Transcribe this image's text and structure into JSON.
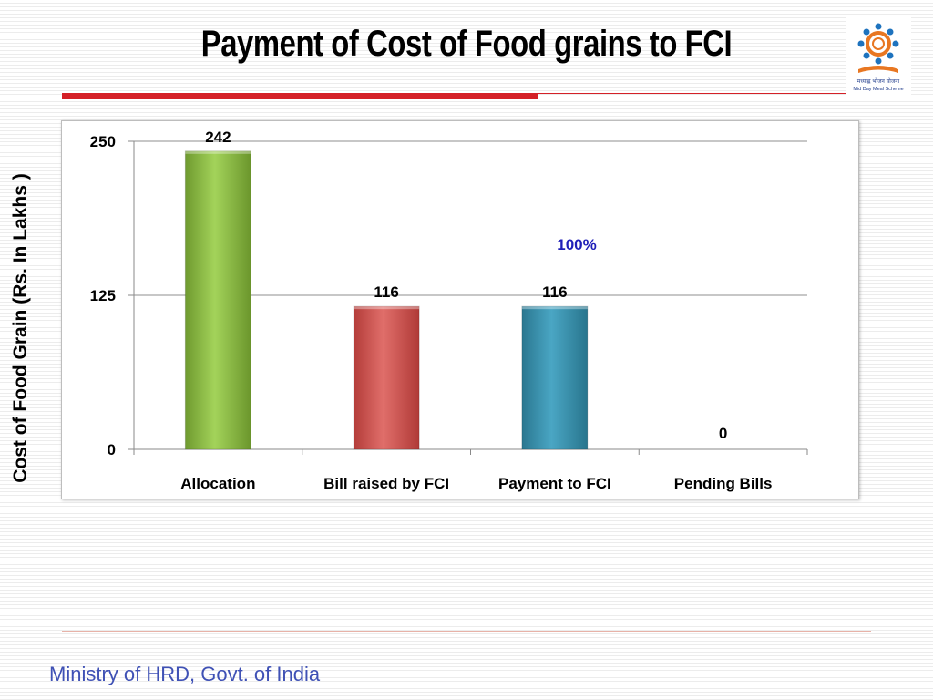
{
  "slide": {
    "title": "Payment of Cost of Food grains to FCI",
    "footer": "Ministry of HRD, Govt. of India",
    "logo_caption": "मध्याह्न भोजन योजना",
    "logo_subcaption": "Mid Day Meal Scheme"
  },
  "chart_data": {
    "type": "bar",
    "title": "Payment of Cost of Food grains to FCI",
    "xlabel": "",
    "ylabel": "Cost of Food Grain (Rs. In Lakhs )",
    "categories": [
      "Allocation",
      "Bill raised by FCI",
      "Payment to FCI",
      "Pending Bills"
    ],
    "values": [
      242,
      116,
      116,
      0
    ],
    "data_labels": [
      "242",
      "116",
      "116",
      "0"
    ],
    "bar_colors": [
      "#8cc63f",
      "#d9534f",
      "#3a93b0",
      "#8064a2"
    ],
    "ylim": [
      0,
      250
    ],
    "yticks": [
      0,
      125,
      250
    ],
    "annotation": "100%",
    "grid": true,
    "legend": "none"
  }
}
